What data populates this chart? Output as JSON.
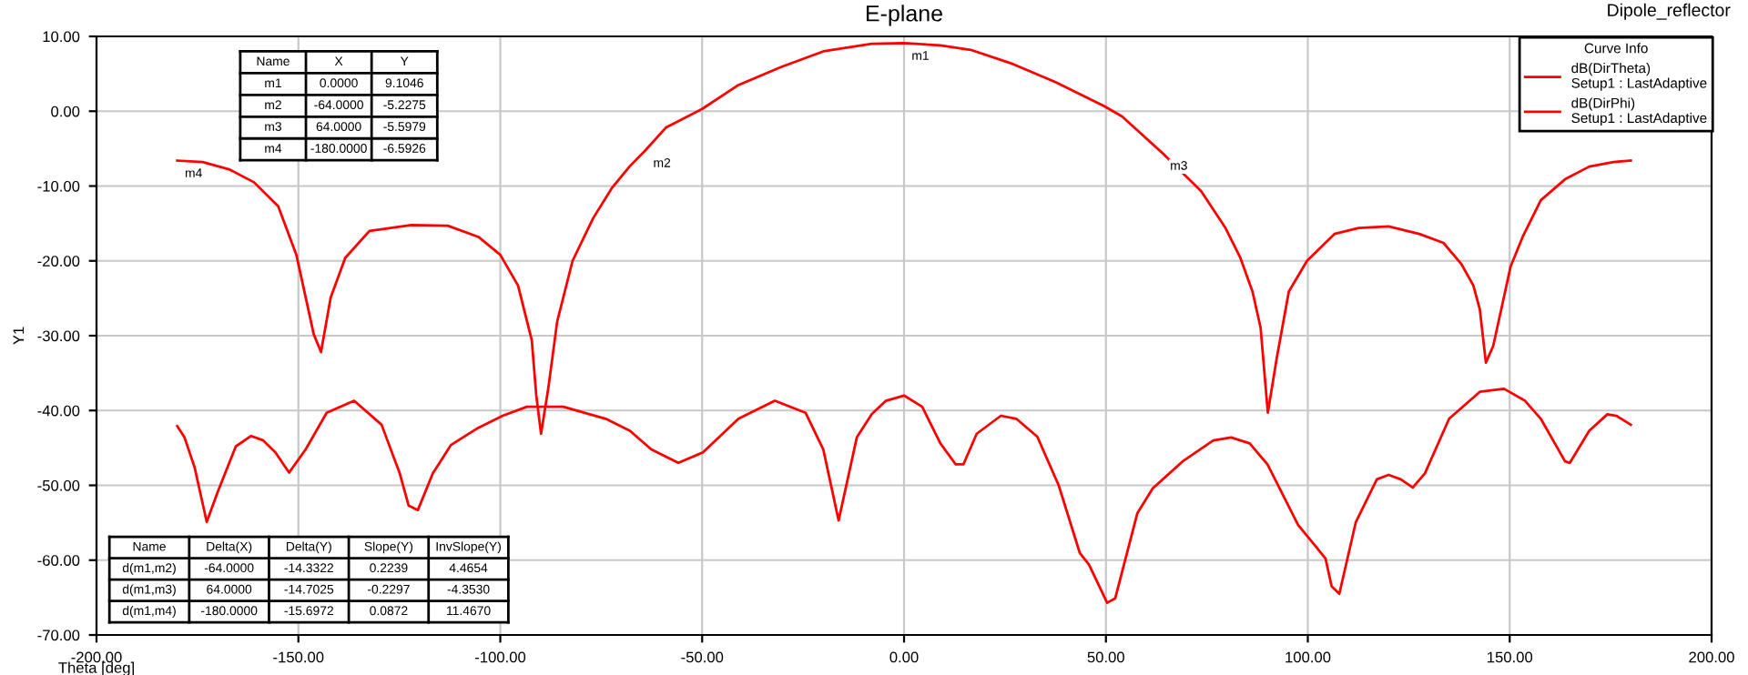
{
  "chart_data": {
    "type": "line",
    "title": "E-plane",
    "xlabel": "Theta [deg]",
    "ylabel": "Y1",
    "legend_title": "Curve Info",
    "xlim": [
      -200,
      200
    ],
    "xticks": [
      {
        "value": -200,
        "label": "-200.00"
      },
      {
        "value": -150,
        "label": "-150.00"
      },
      {
        "value": -100,
        "label": "-100.00"
      },
      {
        "value": -50,
        "label": "-50.00"
      },
      {
        "value": 0,
        "label": "0.00"
      },
      {
        "value": 50,
        "label": "50.00"
      },
      {
        "value": 100,
        "label": "100.00"
      },
      {
        "value": 150,
        "label": "150.00"
      },
      {
        "value": 200,
        "label": "200.00"
      }
    ],
    "ylim": [
      -70,
      10
    ],
    "yticks": [
      {
        "value": -70,
        "label": "-70.00"
      },
      {
        "value": -60,
        "label": "-60.00"
      },
      {
        "value": -50,
        "label": "-50.00"
      },
      {
        "value": -40,
        "label": "-40.00"
      },
      {
        "value": -30,
        "label": "-30.00"
      },
      {
        "value": -20,
        "label": "-20.00"
      },
      {
        "value": -10,
        "label": "-10.00"
      },
      {
        "value": 0,
        "label": "0.00"
      },
      {
        "value": 10,
        "label": "10.00"
      }
    ],
    "grid": true,
    "legend": "top right",
    "marker": "none",
    "line_style": "solid",
    "series": [
      {
        "name": "dB(DirTheta)\nSetup1 : LastAdaptive",
        "color": "#ff0000",
        "x": [
          -180,
          -173.7,
          -167,
          -161,
          -155,
          -150.5,
          -146.2,
          -144.4,
          -142,
          -138.4,
          -132.4,
          -122,
          -113,
          -105.4,
          -100,
          -95.6,
          -92.2,
          -91.1,
          -89.9,
          -88.1,
          -85.9,
          -82.1,
          -77,
          -72.4,
          -68,
          -64,
          -59,
          -50,
          -41,
          -30.5,
          -20,
          -8,
          0,
          9,
          16.5,
          27,
          37.5,
          49.5,
          54,
          64,
          73.6,
          79.6,
          83.3,
          86.3,
          88.3,
          90.1,
          92.3,
          95.3,
          99.8,
          106.6,
          112.6,
          120,
          127.6,
          133.6,
          138,
          141,
          142.6,
          144.1,
          145.9,
          147.9,
          150.2,
          153.2,
          157.7,
          163.7,
          169.7,
          175.7,
          180
        ],
        "values": [
          -6.6,
          -6.8,
          -7.8,
          -9.5,
          -12.7,
          -19.2,
          -29.8,
          -32.2,
          -24.9,
          -19.6,
          -16,
          -15.2,
          -15.3,
          -16.8,
          -19.2,
          -23.3,
          -30.6,
          -37.9,
          -43.1,
          -37,
          -28.1,
          -20,
          -14.3,
          -10.3,
          -7.4,
          -5.2,
          -2.2,
          0.3,
          3.5,
          5.9,
          8,
          9,
          9.1,
          8.8,
          8.2,
          6.3,
          3.9,
          0.7,
          -0.7,
          -5.6,
          -10.7,
          -15.6,
          -19.6,
          -24.1,
          -28.9,
          -40.3,
          -33,
          -24.1,
          -20,
          -16.4,
          -15.6,
          -15.4,
          -16.4,
          -17.6,
          -20.4,
          -23.3,
          -26.5,
          -33.6,
          -31.4,
          -26.5,
          -20.8,
          -16.8,
          -11.9,
          -9.1,
          -7.4,
          -6.8,
          -6.6
        ]
      },
      {
        "name": "dB(DirPhi)\nSetup1 : LastAdaptive",
        "color": "#ff0000",
        "x": [
          -180,
          -178.2,
          -175.7,
          -172.7,
          -170,
          -165.5,
          -161.7,
          -158.7,
          -155.7,
          -152.3,
          -148.2,
          -143,
          -136.2,
          -129.4,
          -124.9,
          -122.7,
          -120.4,
          -116.7,
          -112.2,
          -105.4,
          -99.4,
          -93.4,
          -84.4,
          -73.9,
          -67.9,
          -62.6,
          -55.9,
          -49.8,
          -41,
          -32,
          -24.4,
          -20,
          -16.2,
          -11.7,
          -8,
          -4.5,
          0,
          4.5,
          9,
          12.8,
          14.7,
          18,
          24,
          27.8,
          33,
          38.3,
          43.5,
          45.8,
          50.3,
          52.3,
          57.8,
          61.6,
          69,
          76.6,
          81,
          85.6,
          90,
          97.6,
          102,
          104.4,
          105.9,
          107.8,
          111.9,
          117.1,
          120,
          123,
          126,
          129,
          135,
          142.6,
          148.6,
          153.8,
          157.7,
          163.7,
          164.9,
          169.7,
          174.2,
          176.4,
          180
        ],
        "values": [
          -42.1,
          -43.6,
          -47.6,
          -54.9,
          -50.9,
          -44.8,
          -43.4,
          -44,
          -45.6,
          -48.3,
          -45.2,
          -40.3,
          -38.7,
          -41.9,
          -48.4,
          -52.7,
          -53.3,
          -48.4,
          -44.6,
          -42.3,
          -40.7,
          -39.5,
          -39.5,
          -41.1,
          -42.7,
          -45.2,
          -47,
          -45.6,
          -41.1,
          -38.7,
          -40.3,
          -45.2,
          -54.7,
          -43.6,
          -40.5,
          -38.7,
          -38,
          -39.5,
          -44.4,
          -47.2,
          -47.2,
          -43.1,
          -40.7,
          -41.1,
          -43.5,
          -50,
          -59,
          -60.6,
          -65.7,
          -65.1,
          -53.7,
          -50.4,
          -46.8,
          -44,
          -43.6,
          -44.4,
          -47.2,
          -55.3,
          -58.2,
          -59.8,
          -63.5,
          -64.5,
          -54.9,
          -49.2,
          -48.6,
          -49.2,
          -50.3,
          -48.4,
          -41.1,
          -37.5,
          -37.1,
          -38.7,
          -41.1,
          -46.8,
          -47,
          -42.7,
          -40.5,
          -40.7,
          -41.9
        ]
      }
    ],
    "annotations": [
      "Dipole_reflector",
      "Name\tX\tY\nm1\t0.0000\t9.1046\nm2\t-64.0000\t-5.2275\nm3\t64.0000\t-5.5979\nm4\t-180.0000\t-6.5926",
      "Name\tDelta(X)\tDelta(Y)\tSlope(Y)\tInvSlope(Y)\nd(m1,m2)\t-64.0000\t-14.3322\t0.2239\t4.4654\nd(m1,m3)\t64.0000\t-14.7025\t-0.2297\t-4.3530\nd(m1,m4)\t-180.0000\t-15.6972\t0.0872\t11.4670",
      {
        "text": "m1",
        "x": 0,
        "y": 9.1046
      },
      {
        "text": "m2",
        "x": -64,
        "y": -5.2275
      },
      {
        "text": "m3",
        "x": 64,
        "y": -5.5979
      },
      {
        "text": "m4",
        "x": -180,
        "y": -6.5926
      }
    ]
  }
}
